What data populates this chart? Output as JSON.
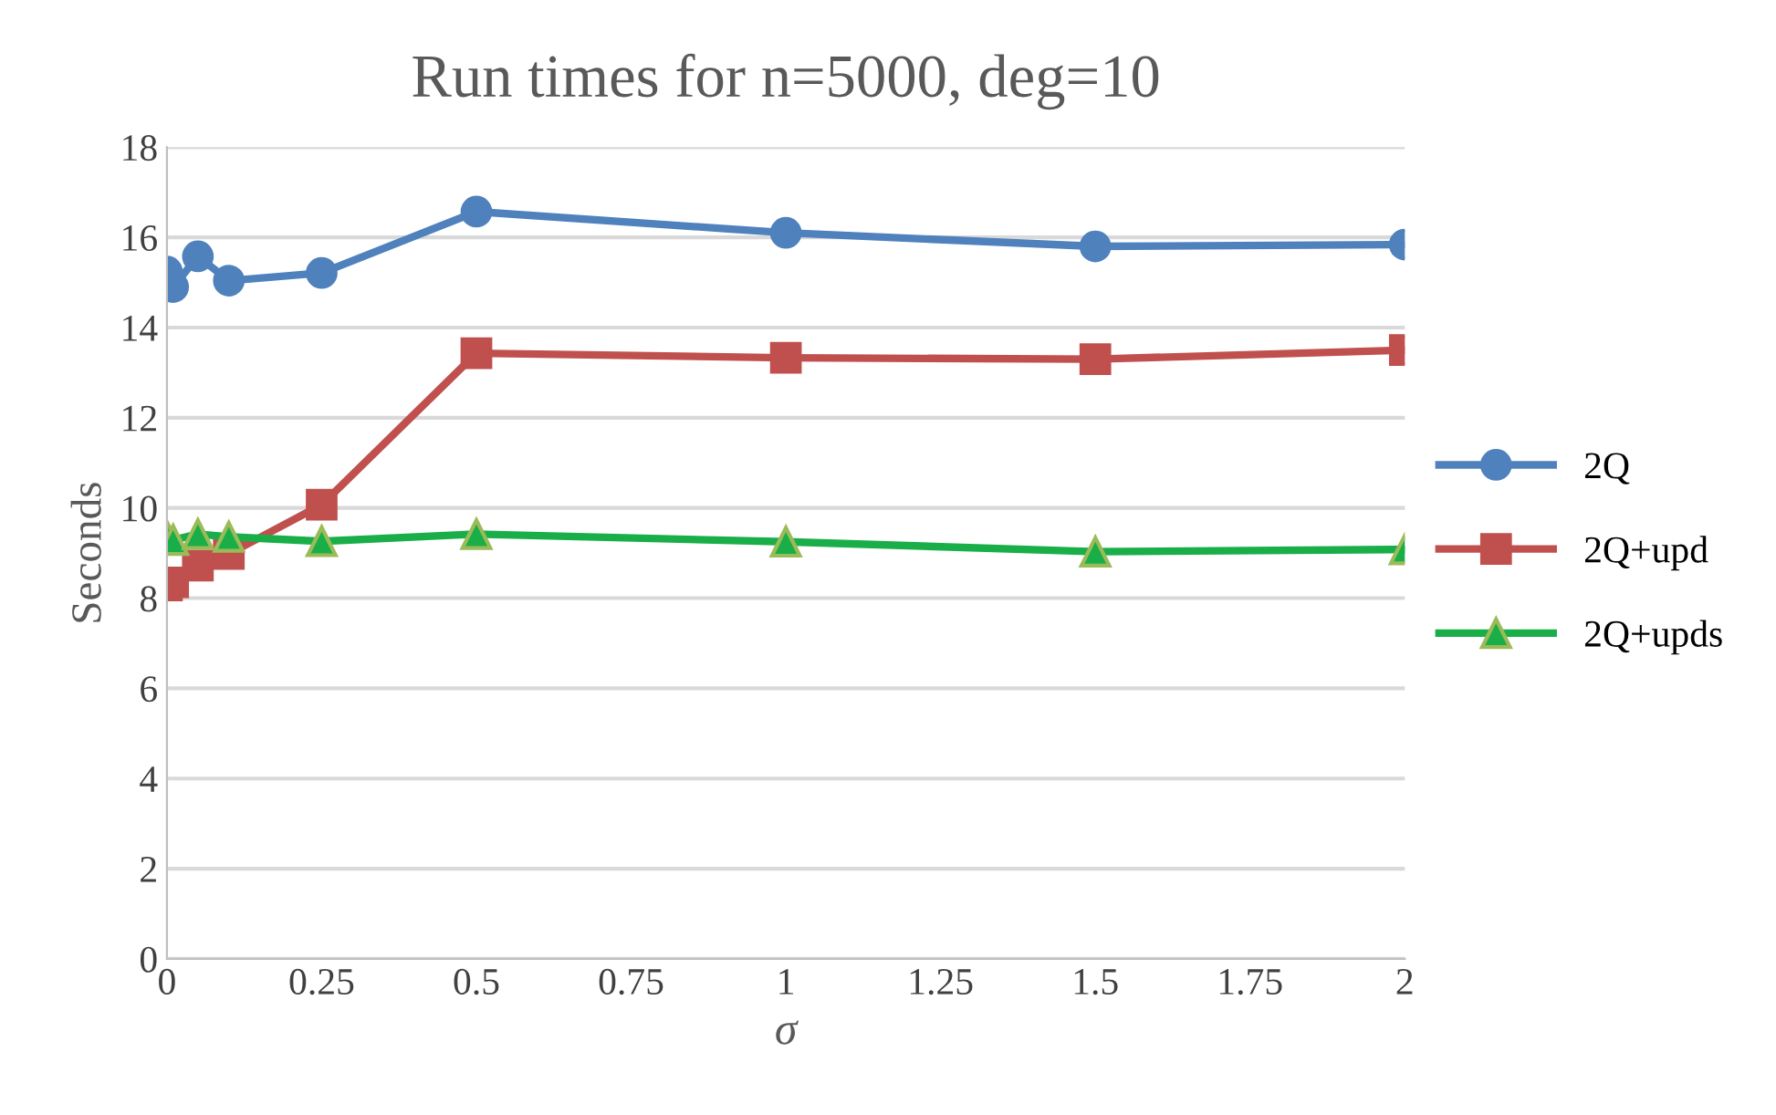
{
  "chart_data": {
    "type": "line",
    "title": "Run times for n=5000, deg=10",
    "xlabel": "σ",
    "ylabel": "Seconds",
    "x": [
      0,
      0.01,
      0.05,
      0.1,
      0.25,
      0.5,
      1,
      1.5,
      2
    ],
    "series": [
      {
        "name": "2Q",
        "color": "#4f81bd",
        "marker": "circle",
        "values": [
          15.24,
          14.9,
          15.58,
          15.04,
          15.21,
          16.57,
          16.1,
          15.8,
          15.84
        ]
      },
      {
        "name": "2Q+upd",
        "color": "#c0504d",
        "marker": "square",
        "values": [
          8.28,
          8.35,
          8.72,
          8.98,
          10.07,
          13.43,
          13.33,
          13.3,
          13.5
        ]
      },
      {
        "name": "2Q+upds",
        "color": "#1aae48",
        "marker": "triangle",
        "values": [
          9.38,
          9.29,
          9.42,
          9.36,
          9.26,
          9.42,
          9.25,
          9.03,
          9.08
        ]
      }
    ],
    "xlim": [
      0,
      2
    ],
    "xticks": [
      0,
      0.25,
      0.5,
      0.75,
      1,
      1.25,
      1.5,
      1.75,
      2
    ],
    "ylim": [
      0,
      18
    ],
    "yticks": [
      0,
      2,
      4,
      6,
      8,
      10,
      12,
      14,
      16,
      18
    ],
    "grid": "y",
    "legend": "right",
    "line_style": "solid"
  }
}
